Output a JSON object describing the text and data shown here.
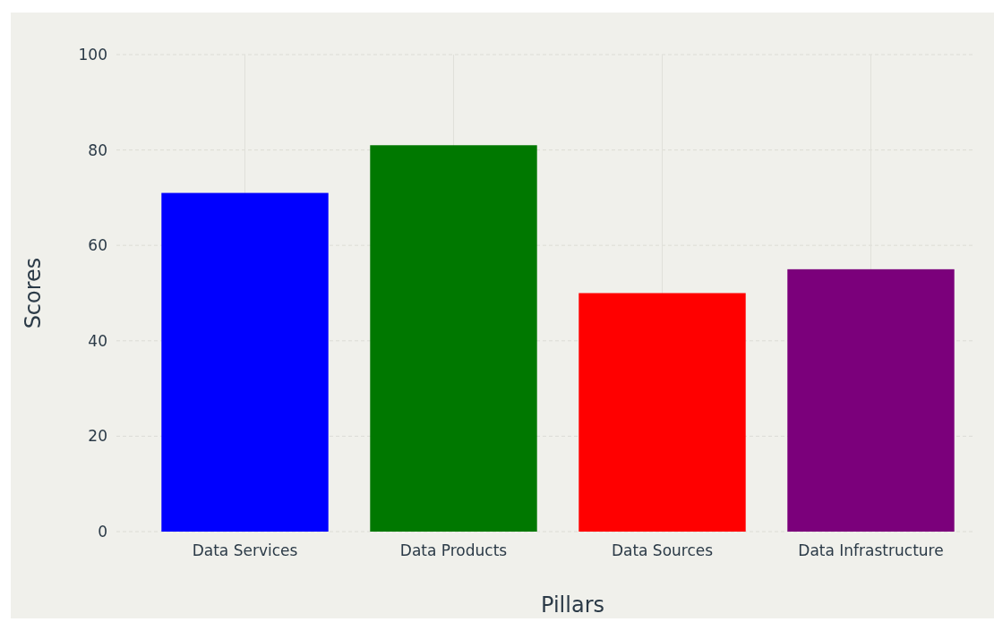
{
  "chart_data": {
    "type": "bar",
    "xlabel": "Pillars",
    "ylabel": "Scores",
    "categories": [
      "Data Services",
      "Data Products",
      "Data Sources",
      "Data Infrastructure"
    ],
    "values": [
      71,
      81,
      50,
      55
    ],
    "colors": [
      "#0000ff",
      "#007800",
      "#ff0000",
      "#7b007b"
    ],
    "ylim": [
      0,
      100
    ],
    "yticks": [
      0,
      20,
      40,
      60,
      80,
      100
    ],
    "grid": true
  }
}
